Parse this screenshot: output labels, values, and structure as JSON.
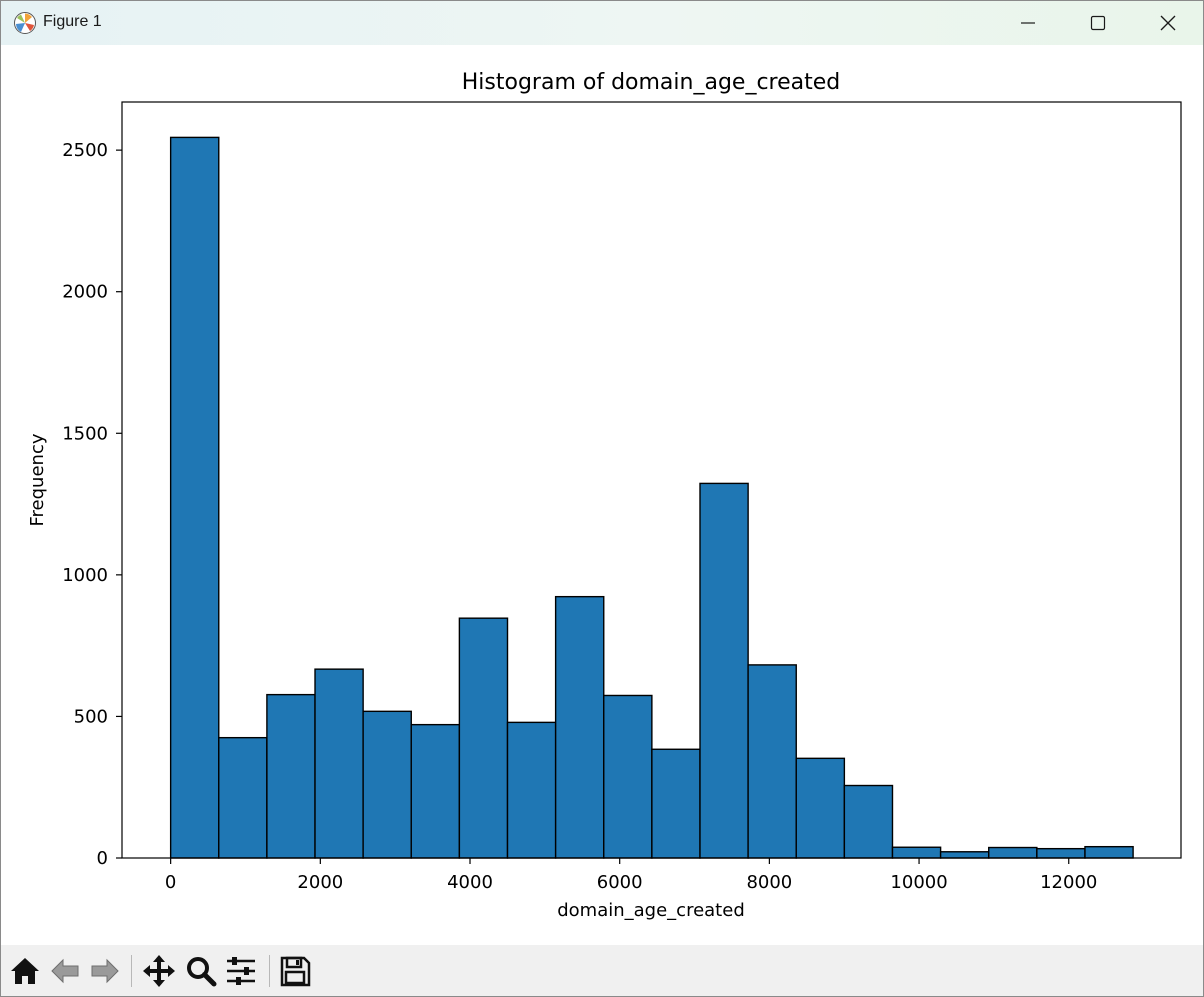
{
  "window": {
    "title": "Figure 1"
  },
  "toolbar": {
    "tools": [
      {
        "name": "home-icon"
      },
      {
        "name": "back-arrow-icon"
      },
      {
        "name": "forward-arrow-icon"
      },
      {
        "name": "pan-icon"
      },
      {
        "name": "zoom-icon"
      },
      {
        "name": "configure-subplots-icon"
      },
      {
        "name": "save-icon"
      }
    ]
  },
  "colors": {
    "bar_fill": "#1f77b4",
    "bar_edge": "#000000"
  },
  "chart_data": {
    "type": "bar",
    "title": "Histogram of domain_age_created",
    "xlabel": "domain_age_created",
    "ylabel": "Frequency",
    "xlim": [
      -650,
      13500
    ],
    "ylim": [
      0,
      2670
    ],
    "xticks": [
      0,
      2000,
      4000,
      6000,
      8000,
      10000,
      12000
    ],
    "yticks": [
      0,
      500,
      1000,
      1500,
      2000,
      2500
    ],
    "bin_edges": [
      0,
      643,
      1286,
      1929,
      2572,
      3215,
      3858,
      4501,
      5144,
      5787,
      6430,
      7073,
      7716,
      8359,
      9002,
      9645,
      10288,
      10931,
      11574,
      12217,
      12860
    ],
    "values": [
      2545,
      425,
      577,
      667,
      518,
      471,
      847,
      479,
      923,
      574,
      384,
      1323,
      682,
      352,
      256,
      38,
      22,
      37,
      33,
      40
    ],
    "grid": false,
    "legend": "none"
  }
}
